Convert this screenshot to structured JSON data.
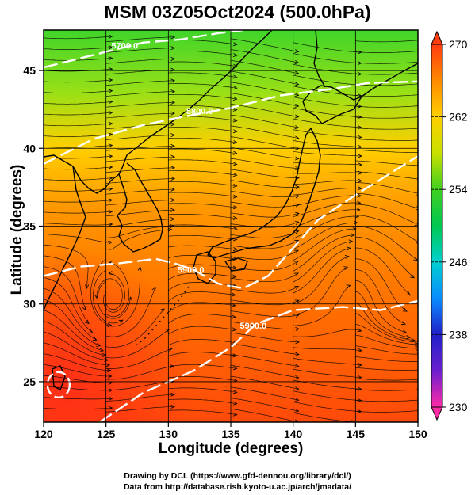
{
  "title": "MSM 03Z05Oct2024 (500.0hPa)",
  "xlabel": "Longitude (degrees)",
  "ylabel": "Latitude  (degrees)",
  "credits": {
    "line1": "Drawing by DCL (https://www.gfd-dennou.org/library/dcl/)",
    "line2": "Data from http://database.rish.kyoto-u.ac.jp/arch/jmadata/"
  },
  "chart_data": {
    "type": "heatmap",
    "xlim": [
      120,
      150
    ],
    "ylim": [
      22.4,
      47.6
    ],
    "x_ticks": [
      "120",
      "125",
      "130",
      "135",
      "140",
      "145",
      "150"
    ],
    "y_ticks": [
      "25",
      "30",
      "35",
      "40",
      "45"
    ],
    "grid": true,
    "colorbar": {
      "min": 230,
      "max": 270,
      "tick_labels": [
        "230",
        "238",
        "246",
        "254",
        "262",
        "270"
      ],
      "colors": [
        "#ff2aa8",
        "#6c1fd0",
        "#2020c8",
        "#0a8cff",
        "#00d0d0",
        "#00c850",
        "#40d020",
        "#c8e000",
        "#ffd000",
        "#ff8a00",
        "#ff3c10"
      ]
    },
    "contours": [
      {
        "label": "5700.0",
        "points": [
          [
            120,
            45.2
          ],
          [
            124,
            46
          ],
          [
            128,
            46.8
          ],
          [
            131,
            47
          ],
          [
            134,
            47.4
          ],
          [
            136,
            47.6
          ]
        ]
      },
      {
        "label": "5800.0",
        "points": [
          [
            120,
            39
          ],
          [
            124,
            40.6
          ],
          [
            128,
            41.5
          ],
          [
            131,
            42.0
          ],
          [
            135,
            42.6
          ],
          [
            139,
            43.4
          ],
          [
            143,
            43.8
          ],
          [
            146,
            44.2
          ],
          [
            150,
            44.3
          ]
        ]
      },
      {
        "label": "5900.0",
        "points": [
          [
            120,
            31.8
          ],
          [
            123,
            32.4
          ],
          [
            126,
            32.6
          ],
          [
            129,
            32.9
          ],
          [
            130.5,
            32.6
          ],
          [
            132,
            32.2
          ],
          [
            134,
            31.3
          ],
          [
            136,
            31.0
          ],
          [
            138,
            31.8
          ],
          [
            140,
            33.6
          ],
          [
            142,
            35.4
          ],
          [
            145,
            37.0
          ],
          [
            148,
            38.5
          ],
          [
            150,
            39.5
          ]
        ]
      },
      {
        "label": "5900.0",
        "points": [
          [
            124.5,
            22.4
          ],
          [
            128,
            24.3
          ],
          [
            132,
            25.7
          ],
          [
            135,
            27.2
          ],
          [
            137,
            28.7
          ],
          [
            140,
            29.6
          ],
          [
            144,
            29.8
          ],
          [
            147,
            29.6
          ],
          [
            150,
            30.2
          ]
        ]
      }
    ],
    "contour_labels": [
      {
        "text": "5700.0",
        "x": 126.5,
        "y": 46.4
      },
      {
        "text": "5800.0",
        "x": 132.5,
        "y": 42.2
      },
      {
        "text": "5900.0",
        "x": 131.8,
        "y": 32.0
      },
      {
        "text": "5900.0",
        "x": 136.8,
        "y": 28.4
      }
    ]
  }
}
